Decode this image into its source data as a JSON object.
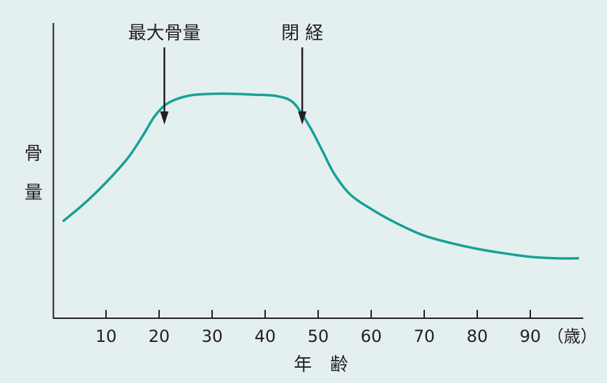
{
  "chart_data": {
    "type": "line",
    "title": "",
    "xlabel": "年　齢",
    "ylabel": [
      "骨",
      "量"
    ],
    "x_unit": "（歳）",
    "xlim": [
      0,
      100
    ],
    "ylim": [
      0,
      100
    ],
    "x_ticks": [
      10,
      20,
      30,
      40,
      50,
      60,
      70,
      80,
      90
    ],
    "grid": false,
    "legend": "none",
    "series": [
      {
        "color": "#17a096",
        "x": [
          2,
          6,
          10,
          14,
          17,
          19,
          21,
          23,
          26,
          30,
          34,
          38,
          42,
          45,
          47,
          49,
          51,
          53,
          56,
          60,
          65,
          70,
          75,
          80,
          85,
          90,
          95,
          99
        ],
        "y": [
          33,
          39,
          46,
          54,
          62,
          68,
          72,
          74,
          75.5,
          76,
          76,
          75.7,
          75.3,
          73.5,
          69,
          63,
          56,
          49,
          42,
          37,
          32,
          28,
          25.5,
          23.5,
          22,
          20.8,
          20.3,
          20.3
        ]
      }
    ],
    "annotations": [
      {
        "label": "最大骨量",
        "x": 21
      },
      {
        "label": "閉  経",
        "x": 47
      }
    ]
  }
}
